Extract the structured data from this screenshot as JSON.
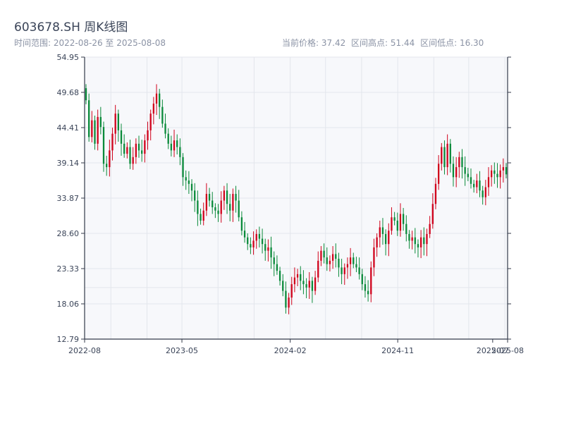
{
  "header": {
    "title": "603678.SH 周K线图",
    "subtitle": "时间范围: 2022-08-26 至 2025-08-08",
    "current_price": "当前价格: 37.42",
    "period_high": "区间高点: 51.44",
    "period_low": "区间低点: 16.30"
  },
  "colors": {
    "up": "#d0021b",
    "down": "#0a8a3a",
    "plot_bg": "#f7f8fb",
    "grid": "#e3e6ec",
    "axis": "#333a4a",
    "tick_text": "#3a4458"
  },
  "chart_data": {
    "type": "candlestick",
    "title": "603678.SH 周K线图",
    "xlabel": "",
    "ylabel": "",
    "ylim": [
      12.79,
      54.95
    ],
    "y_ticks": [
      12.79,
      18.06,
      23.33,
      28.6,
      33.87,
      39.14,
      44.41,
      49.68,
      54.95
    ],
    "y_tick_labels": [
      "12.79",
      "18.06",
      "23.33",
      "28.60",
      "33.87",
      "39.14",
      "44.41",
      "49.68",
      "54.95"
    ],
    "x_range": [
      "2022-08-26",
      "2025-08-08"
    ],
    "x_ticks": [
      "2022-08-26",
      "2023-05-01",
      "2024-02-01",
      "2024-11-01",
      "2025-07-01",
      "2025-08-08"
    ],
    "x_tick_labels": [
      "2022-08",
      "2023-05",
      "2024-02",
      "2024-11",
      "2025-07",
      "2025-08"
    ],
    "grid": true,
    "closes": [
      48.5,
      43.0,
      45.5,
      42.0,
      46.0,
      44.5,
      39.0,
      38.5,
      41.0,
      43.5,
      46.5,
      44.0,
      42.0,
      40.5,
      41.5,
      39.0,
      40.0,
      42.0,
      41.0,
      40.5,
      42.5,
      44.0,
      46.5,
      48.0,
      49.5,
      47.5,
      45.0,
      43.5,
      42.0,
      41.0,
      42.5,
      41.5,
      40.0,
      37.0,
      36.5,
      36.0,
      35.0,
      33.5,
      31.5,
      30.5,
      32.0,
      34.5,
      33.5,
      32.5,
      32.0,
      31.5,
      33.5,
      35.0,
      33.0,
      32.0,
      34.5,
      33.5,
      31.0,
      29.0,
      28.0,
      27.0,
      26.5,
      27.5,
      28.5,
      27.8,
      27.0,
      26.0,
      26.5,
      25.0,
      24.0,
      23.0,
      21.5,
      20.0,
      17.5,
      19.0,
      21.0,
      22.0,
      22.5,
      21.5,
      21.0,
      20.5,
      21.5,
      20.0,
      22.0,
      24.5,
      26.0,
      25.0,
      24.0,
      24.5,
      25.5,
      24.8,
      23.5,
      22.5,
      23.5,
      24.0,
      25.0,
      24.0,
      23.5,
      22.5,
      21.0,
      20.0,
      19.5,
      23.5,
      26.5,
      28.0,
      29.5,
      28.5,
      27.0,
      29.0,
      31.0,
      30.5,
      29.0,
      31.5,
      30.0,
      28.5,
      27.5,
      28.0,
      27.0,
      26.5,
      28.0,
      27.0,
      28.5,
      30.0,
      33.0,
      36.0,
      39.0,
      41.5,
      38.5,
      42.0,
      39.0,
      37.0,
      38.5,
      40.0,
      38.5,
      37.5,
      37.0,
      36.0,
      35.5,
      36.5,
      35.0,
      34.0,
      35.5,
      37.0,
      38.0,
      37.5,
      37.0,
      38.0,
      38.5,
      37.42
    ]
  }
}
